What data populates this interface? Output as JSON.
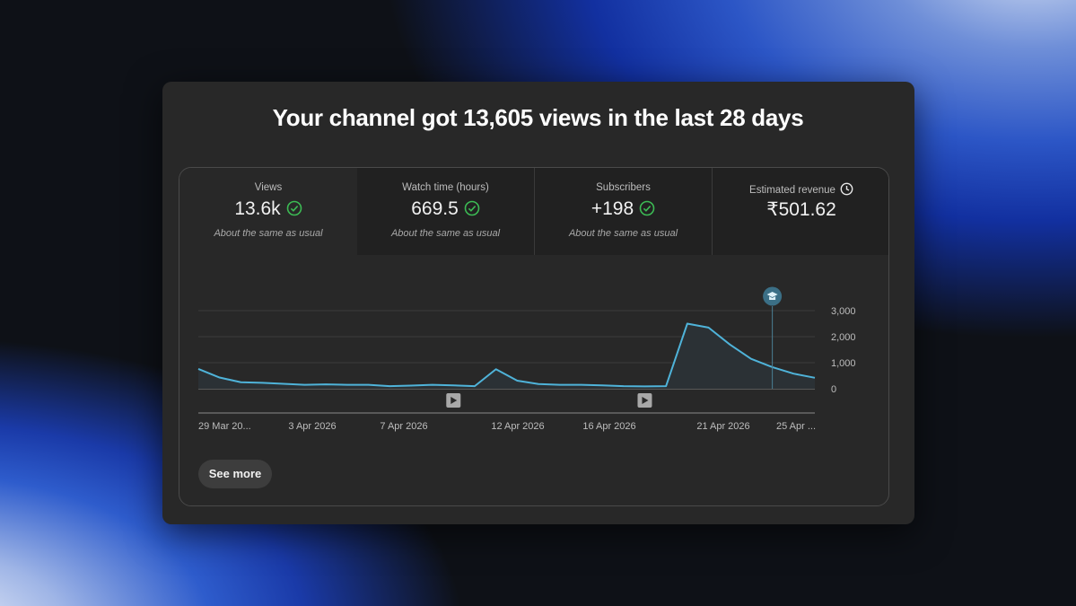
{
  "headline": "Your channel got 13,605 views in the last 28 days",
  "metrics": [
    {
      "label": "Views",
      "value": "13.6k",
      "sub": "About the same as usual",
      "status": "check-circle-icon"
    },
    {
      "label": "Watch time (hours)",
      "value": "669.5",
      "sub": "About the same as usual",
      "status": "check-circle-icon"
    },
    {
      "label": "Subscribers",
      "value": "+198",
      "sub": "About the same as usual",
      "status": "check-circle-icon"
    },
    {
      "label": "Estimated revenue",
      "value": "₹501.62",
      "sub": "",
      "status": "clock-icon"
    }
  ],
  "chart_data": {
    "type": "area",
    "x_tick_labels": [
      "29 Mar 20...",
      "3 Apr 2026",
      "7 Apr 2026",
      "12 Apr 2026",
      "16 Apr 2026",
      "21 Apr 2026",
      "25 Apr ..."
    ],
    "y_tick_labels": [
      "3,000",
      "2,000",
      "1,000",
      "0"
    ],
    "ylim": [
      0,
      3000
    ],
    "values": [
      760,
      430,
      250,
      230,
      190,
      150,
      170,
      150,
      150,
      100,
      120,
      150,
      130,
      100,
      750,
      310,
      180,
      150,
      150,
      130,
      100,
      90,
      100,
      2500,
      2350,
      1700,
      1150,
      830,
      580,
      420
    ],
    "video_markers_at_index": [
      12,
      21
    ],
    "milestone_marker_at_index": 27,
    "line_color": "#4fb3d9",
    "fill_color": "#2b3135"
  },
  "see_more_label": "See more"
}
